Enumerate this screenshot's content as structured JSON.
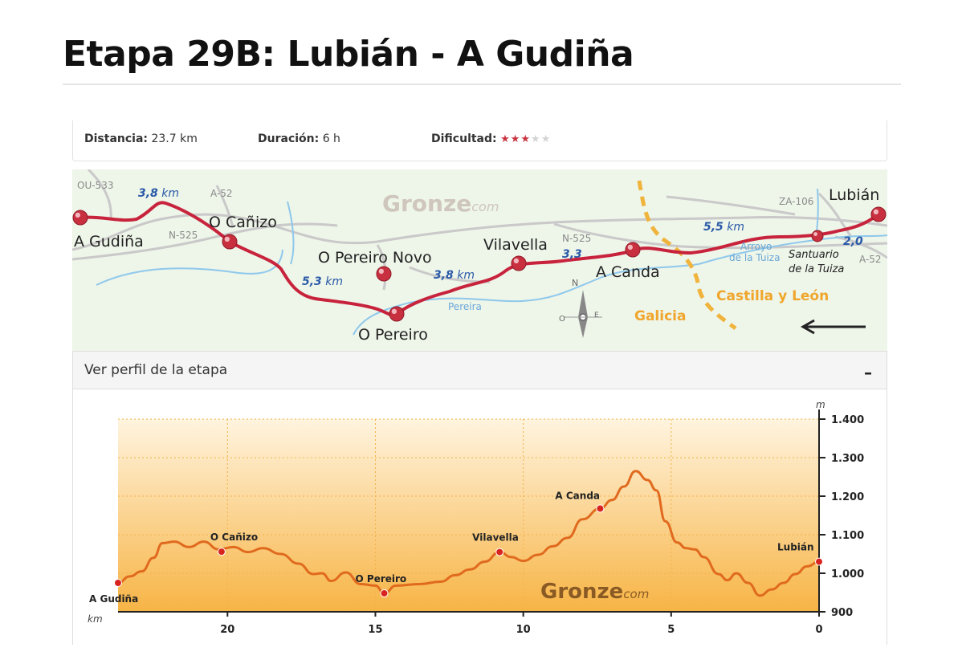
{
  "page": {
    "title": "Etapa 29B: Lubián - A Gudiña"
  },
  "info": {
    "distance_label": "Distancia:",
    "distance_value": "23.7 km",
    "duration_label": "Duración:",
    "duration_value": "6 h",
    "difficulty_label": "Dificultad:",
    "difficulty_stars": 3,
    "difficulty_max": 5
  },
  "map": {
    "brand": "Gronze",
    "brand_suffix": "com",
    "towns": [
      "A Gudiña",
      "O Cañizo",
      "O Pereiro Novo",
      "O Pereiro",
      "Vilavella",
      "A Canda",
      "Lubián"
    ],
    "santuario_line1": "Santuario",
    "santuario_line2": "de la Tuiza",
    "segments": [
      "3,8",
      "5,3",
      "3,8",
      "3,3",
      "5,5",
      "2,0"
    ],
    "segment_unit": "km",
    "roads": [
      "OU-533",
      "A-52",
      "N-525",
      "N-525",
      "ZA-106",
      "A-52"
    ],
    "rivers": [
      "Pereira",
      "Arroyo",
      "de la Tuiza"
    ],
    "regions": [
      "Castilla y León",
      "Galicia"
    ],
    "compass": {
      "n": "N",
      "o": "O",
      "e": "E"
    }
  },
  "profile": {
    "header_label": "Ver perfil de la etapa",
    "collapse_symbol": "–",
    "brand": "Gronze",
    "brand_suffix": "com"
  },
  "chart_data": {
    "type": "area",
    "x_label": "km",
    "y_unit": "m",
    "xlim": [
      23.7,
      0
    ],
    "ylim": [
      900,
      1400
    ],
    "x_ticks": [
      "20",
      "15",
      "10",
      "5",
      "0"
    ],
    "y_ticks": [
      "1.400",
      "1.300",
      "1.200",
      "1.100",
      "1.000",
      "900"
    ],
    "grid": true,
    "profile": [
      [
        23.7,
        975
      ],
      [
        23.3,
        992
      ],
      [
        22.9,
        1005
      ],
      [
        22.5,
        1040
      ],
      [
        22.2,
        1078
      ],
      [
        21.8,
        1082
      ],
      [
        21.3,
        1068
      ],
      [
        20.8,
        1082
      ],
      [
        20.3,
        1062
      ],
      [
        19.8,
        1068
      ],
      [
        19.3,
        1055
      ],
      [
        18.8,
        1065
      ],
      [
        18.2,
        1050
      ],
      [
        17.6,
        1025
      ],
      [
        17.1,
        998
      ],
      [
        16.8,
        1000
      ],
      [
        16.5,
        980
      ],
      [
        16.0,
        1002
      ],
      [
        15.5,
        972
      ],
      [
        15.0,
        968
      ],
      [
        14.7,
        948
      ],
      [
        14.3,
        968
      ],
      [
        13.5,
        972
      ],
      [
        12.8,
        978
      ],
      [
        12.3,
        995
      ],
      [
        11.8,
        1010
      ],
      [
        11.3,
        1030
      ],
      [
        10.8,
        1055
      ],
      [
        10.4,
        1042
      ],
      [
        10.0,
        1032
      ],
      [
        9.5,
        1048
      ],
      [
        9.0,
        1070
      ],
      [
        8.5,
        1092
      ],
      [
        8.0,
        1140
      ],
      [
        7.4,
        1168
      ],
      [
        7.0,
        1190
      ],
      [
        6.6,
        1225
      ],
      [
        6.2,
        1265
      ],
      [
        5.8,
        1242
      ],
      [
        5.5,
        1215
      ],
      [
        5.2,
        1135
      ],
      [
        4.8,
        1080
      ],
      [
        4.5,
        1065
      ],
      [
        4.2,
        1062
      ],
      [
        3.9,
        1042
      ],
      [
        3.4,
        998
      ],
      [
        3.1,
        982
      ],
      [
        2.8,
        1000
      ],
      [
        2.4,
        975
      ],
      [
        2.0,
        942
      ],
      [
        1.6,
        958
      ],
      [
        1.2,
        975
      ],
      [
        0.8,
        998
      ],
      [
        0.4,
        1018
      ],
      [
        0.0,
        1030
      ]
    ],
    "points": [
      {
        "name": "A Gudiña",
        "x": 23.7,
        "y": 975
      },
      {
        "name": "O Cañizo",
        "x": 20.2,
        "y": 1056
      },
      {
        "name": "O Pereiro",
        "x": 14.7,
        "y": 948
      },
      {
        "name": "Vilavella",
        "x": 10.8,
        "y": 1055
      },
      {
        "name": "A Canda",
        "x": 7.4,
        "y": 1168
      },
      {
        "name": "Lubián",
        "x": 0.0,
        "y": 1030
      }
    ]
  }
}
